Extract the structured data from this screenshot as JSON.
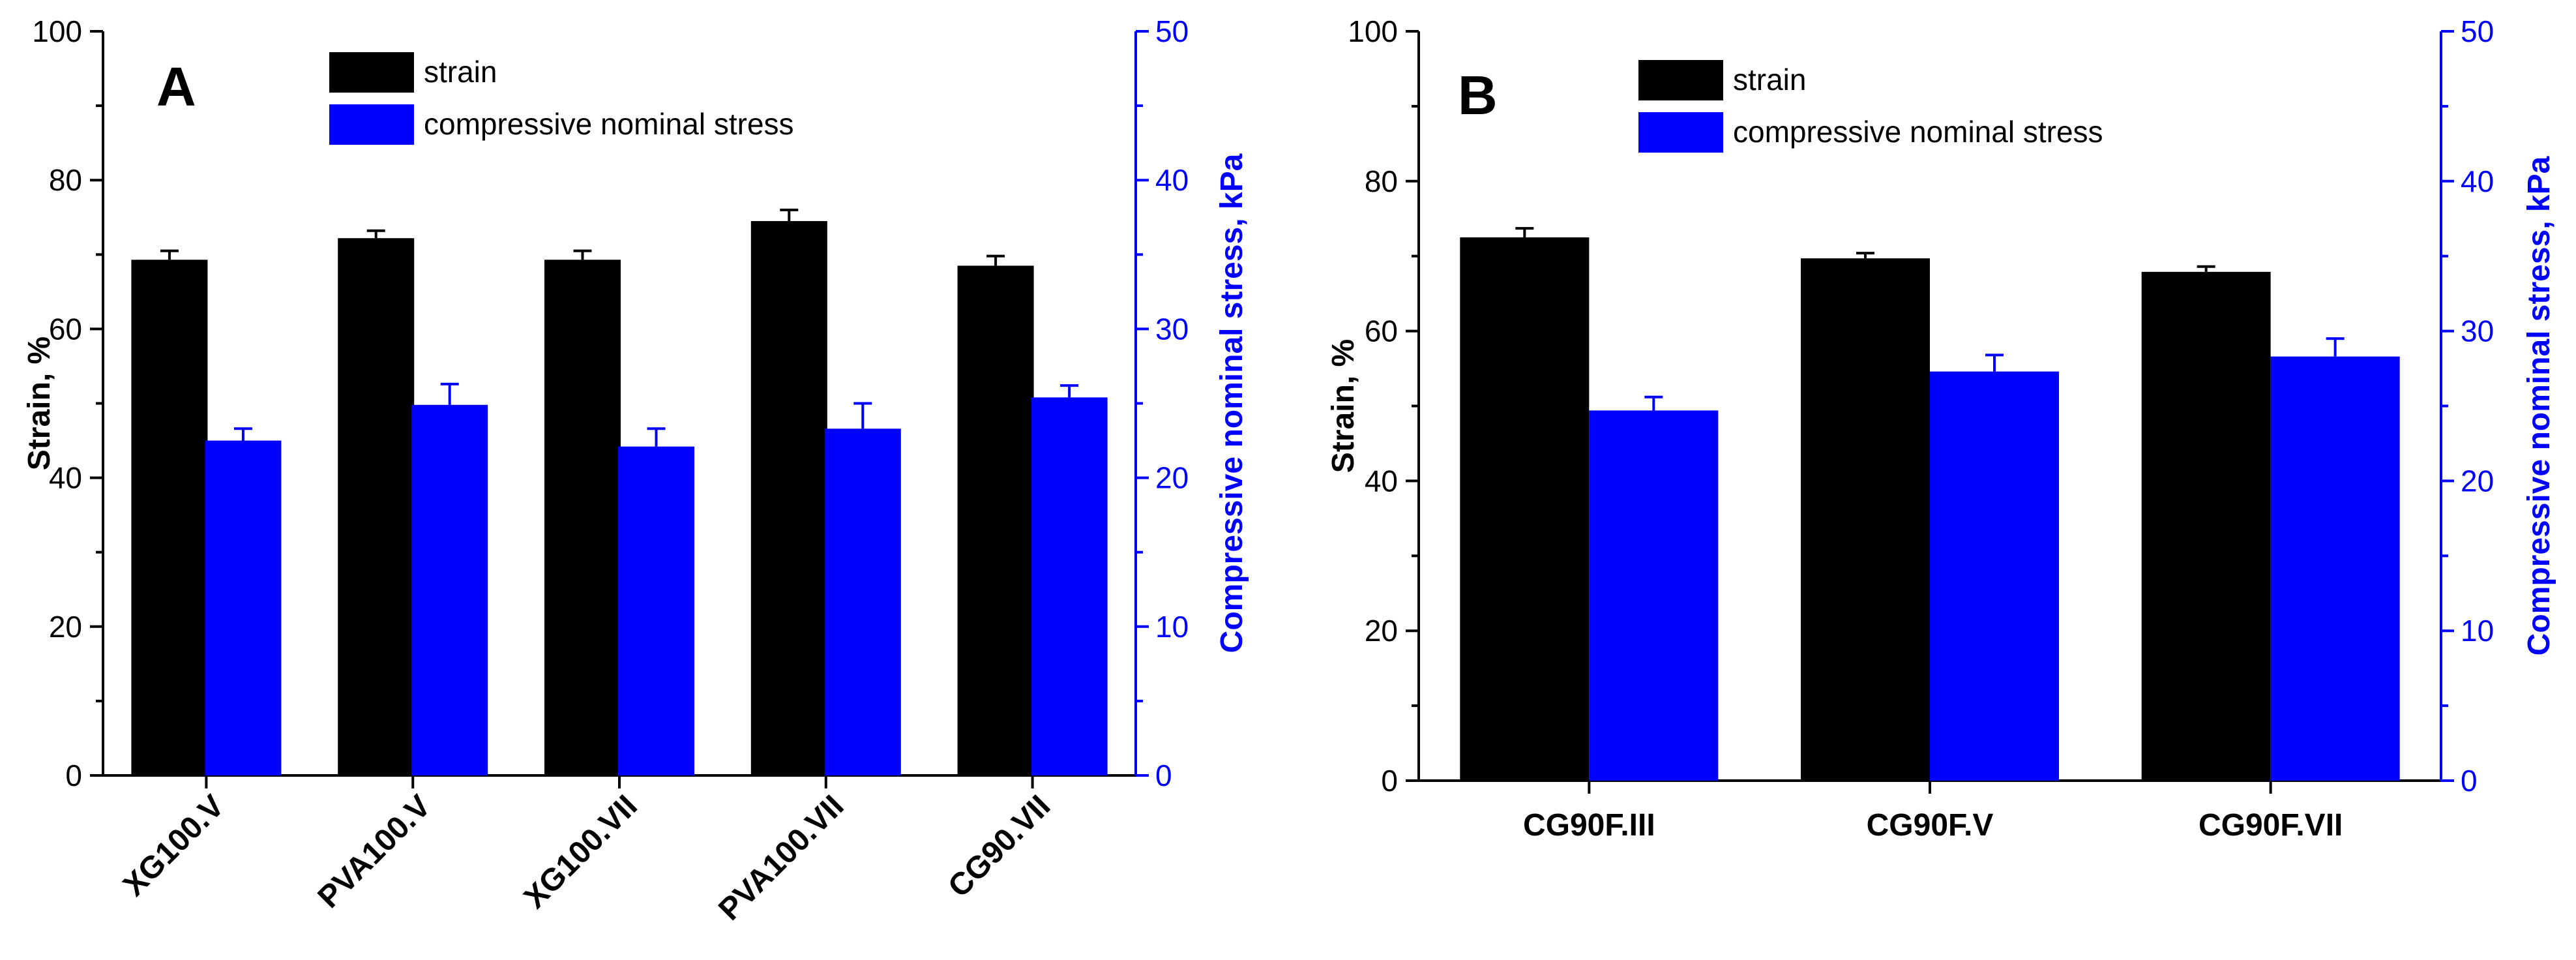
{
  "chart_data": [
    {
      "type": "bar",
      "panel_label": "A",
      "categories": [
        "XG100.V",
        "PVA100.V",
        "XG100.VII",
        "PVA100.VII",
        "CG90.VII"
      ],
      "y_left": {
        "label": "Strain, %",
        "lim": [
          0,
          100
        ],
        "ticks": [
          0,
          20,
          40,
          60,
          80,
          100
        ],
        "color": "#000000"
      },
      "y_right": {
        "label": "Compressive nominal stress, kPa",
        "lim": [
          0,
          50
        ],
        "ticks": [
          0,
          10,
          20,
          30,
          40,
          50
        ],
        "color": "#0000ff"
      },
      "series": [
        {
          "name": "strain",
          "axis": "left",
          "color": "#000000",
          "values": [
            69.3,
            72.2,
            69.3,
            74.5,
            68.5
          ],
          "errors": [
            1.2,
            1.0,
            1.2,
            1.5,
            1.3
          ]
        },
        {
          "name": "compressive nominal stress",
          "axis": "right",
          "color": "#0000ff",
          "values": [
            22.5,
            24.9,
            22.1,
            23.3,
            25.4
          ],
          "errors": [
            0.8,
            1.4,
            1.2,
            1.7,
            0.8
          ]
        }
      ],
      "legend_position": "top-center",
      "grid": false,
      "rotate_x_labels": true
    },
    {
      "type": "bar",
      "panel_label": "B",
      "categories": [
        "CG90F.III",
        "CG90F.V",
        "CG90F.VII"
      ],
      "y_left": {
        "label": "Strain, %",
        "lim": [
          0,
          100
        ],
        "ticks": [
          0,
          20,
          40,
          60,
          80,
          100
        ],
        "color": "#000000"
      },
      "y_right": {
        "label": "Compressive nominal stress, kPa",
        "lim": [
          0,
          50
        ],
        "ticks": [
          0,
          10,
          20,
          30,
          40,
          50
        ],
        "color": "#0000ff"
      },
      "series": [
        {
          "name": "strain",
          "axis": "left",
          "color": "#000000",
          "values": [
            72.5,
            69.7,
            67.9
          ],
          "errors": [
            1.2,
            0.7,
            0.7
          ]
        },
        {
          "name": "compressive nominal stress",
          "axis": "right",
          "color": "#0000ff",
          "values": [
            24.7,
            27.3,
            28.3
          ],
          "errors": [
            0.9,
            1.1,
            1.2
          ]
        }
      ],
      "legend_position": "top-center",
      "grid": false,
      "rotate_x_labels": false
    }
  ]
}
